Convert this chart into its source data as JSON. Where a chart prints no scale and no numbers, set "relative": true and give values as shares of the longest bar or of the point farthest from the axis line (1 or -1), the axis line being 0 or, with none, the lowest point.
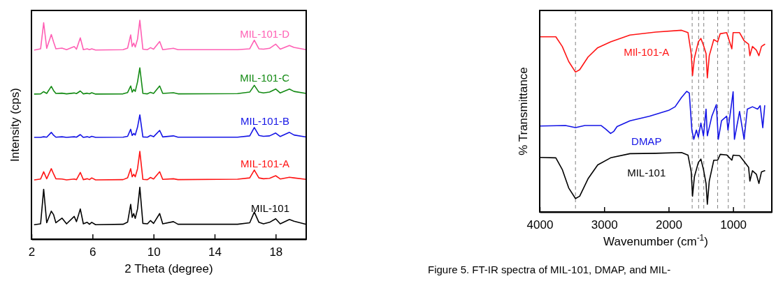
{
  "chart_data": [
    {
      "type": "line",
      "relative": true,
      "xlabel": "2 Theta (degree)",
      "ylabel": "Intensity (cps)",
      "xlim": [
        2,
        20
      ],
      "xticks": [
        2,
        6,
        10,
        14,
        18
      ],
      "x": [
        2.2,
        2.6,
        2.8,
        3.0,
        3.3,
        3.45,
        3.6,
        4.0,
        4.3,
        4.8,
        4.95,
        5.2,
        5.4,
        5.65,
        5.8,
        5.95,
        6.2,
        8.0,
        8.3,
        8.5,
        8.6,
        8.7,
        8.8,
        8.95,
        9.1,
        9.3,
        9.6,
        9.8,
        10.0,
        10.4,
        10.6,
        11.3,
        11.6,
        15.5,
        16.3,
        16.6,
        16.9,
        17.2,
        17.6,
        18.0,
        18.3,
        18.9,
        19.2,
        20.0
      ],
      "series": [
        {
          "name": "MIL-101-D",
          "color": "#ff5fb4",
          "values": [
            0.864,
            0.87,
            0.989,
            0.872,
            0.935,
            0.901,
            0.87,
            0.873,
            0.866,
            0.88,
            0.868,
            0.92,
            0.866,
            0.87,
            0.866,
            0.87,
            0.864,
            0.866,
            0.873,
            0.933,
            0.88,
            0.896,
            0.878,
            0.914,
            1.0,
            0.868,
            0.866,
            0.875,
            0.868,
            0.903,
            0.866,
            0.872,
            0.866,
            0.866,
            0.87,
            0.909,
            0.87,
            0.868,
            0.872,
            0.891,
            0.868,
            0.885,
            0.876,
            0.866
          ]
        },
        {
          "name": "MIL-101-C",
          "color": "#138a13",
          "values": [
            0.663,
            0.664,
            0.674,
            0.666,
            0.698,
            0.679,
            0.666,
            0.667,
            0.664,
            0.668,
            0.665,
            0.677,
            0.664,
            0.667,
            0.664,
            0.669,
            0.663,
            0.664,
            0.67,
            0.7,
            0.672,
            0.684,
            0.675,
            0.719,
            0.783,
            0.666,
            0.664,
            0.671,
            0.666,
            0.7,
            0.666,
            0.669,
            0.664,
            0.665,
            0.672,
            0.703,
            0.672,
            0.668,
            0.672,
            0.686,
            0.668,
            0.686,
            0.675,
            0.666
          ]
        },
        {
          "name": "MIL-101-B",
          "color": "#1414e6",
          "values": [
            0.465,
            0.465,
            0.468,
            0.466,
            0.488,
            0.475,
            0.466,
            0.468,
            0.465,
            0.468,
            0.466,
            0.478,
            0.465,
            0.468,
            0.465,
            0.47,
            0.465,
            0.466,
            0.47,
            0.502,
            0.474,
            0.483,
            0.476,
            0.512,
            0.568,
            0.467,
            0.466,
            0.474,
            0.468,
            0.497,
            0.467,
            0.472,
            0.466,
            0.466,
            0.472,
            0.51,
            0.474,
            0.47,
            0.472,
            0.485,
            0.469,
            0.488,
            0.476,
            0.467
          ]
        },
        {
          "name": "MIL-101-A",
          "color": "#ff1414",
          "values": [
            0.271,
            0.275,
            0.308,
            0.276,
            0.322,
            0.298,
            0.276,
            0.275,
            0.271,
            0.275,
            0.272,
            0.305,
            0.272,
            0.276,
            0.272,
            0.28,
            0.271,
            0.272,
            0.28,
            0.322,
            0.285,
            0.297,
            0.285,
            0.322,
            0.401,
            0.273,
            0.272,
            0.282,
            0.275,
            0.308,
            0.273,
            0.276,
            0.272,
            0.274,
            0.28,
            0.316,
            0.28,
            0.276,
            0.278,
            0.29,
            0.275,
            0.283,
            0.28,
            0.273
          ]
        },
        {
          "name": "MIL-101",
          "color": "#000000",
          "values": [
            0.066,
            0.07,
            0.228,
            0.075,
            0.128,
            0.112,
            0.075,
            0.096,
            0.07,
            0.104,
            0.08,
            0.138,
            0.07,
            0.077,
            0.068,
            0.077,
            0.066,
            0.068,
            0.078,
            0.159,
            0.1,
            0.117,
            0.095,
            0.138,
            0.237,
            0.072,
            0.07,
            0.085,
            0.072,
            0.117,
            0.07,
            0.08,
            0.068,
            0.068,
            0.075,
            0.124,
            0.077,
            0.07,
            0.077,
            0.093,
            0.07,
            0.09,
            0.082,
            0.068
          ]
        }
      ]
    },
    {
      "type": "line",
      "relative": true,
      "xlabel": "Wavenumber (cm$^{-1}$)",
      "ylabel": "% Transmittance",
      "xlim": [
        4000,
        400
      ],
      "xticks": [
        4000,
        3000,
        2000,
        1000
      ],
      "x": [
        4000,
        3750,
        3650,
        3550,
        3445,
        3380,
        3250,
        3100,
        2900,
        2600,
        2200,
        1800,
        1700,
        1650,
        1630,
        1600,
        1540,
        1500,
        1460,
        1420,
        1400,
        1370,
        1300,
        1240,
        1200,
        1100,
        1020,
        1000,
        900,
        830,
        760,
        740,
        700,
        640,
        600,
        560,
        510
      ],
      "series": [
        {
          "name": "MIl-101-A",
          "color": "#ff1414",
          "values": [
            0.964,
            0.964,
            0.911,
            0.828,
            0.77,
            0.783,
            0.853,
            0.904,
            0.936,
            0.974,
            0.99,
            1.0,
            0.987,
            0.872,
            0.751,
            0.847,
            0.936,
            0.955,
            0.917,
            0.872,
            0.738,
            0.86,
            0.949,
            0.936,
            0.981,
            0.987,
            0.898,
            0.987,
            0.987,
            0.943,
            0.923,
            0.86,
            0.911,
            0.891,
            0.86,
            0.911,
            0.923
          ]
        },
        {
          "name": "DMAP",
          "color": "#1414e6",
          "x": [
            4000,
            3600,
            3445,
            3300,
            3050,
            2980,
            2900,
            2850,
            2800,
            2600,
            2300,
            2000,
            1900,
            1800,
            1720,
            1680,
            1640,
            1610,
            1570,
            1540,
            1500,
            1460,
            1420,
            1400,
            1330,
            1260,
            1230,
            1180,
            1100,
            1080,
            1040,
            1000,
            980,
            900,
            830,
            780,
            700,
            620,
            580,
            540,
            510
          ],
          "values": [
            0.473,
            0.476,
            0.464,
            0.476,
            0.476,
            0.457,
            0.432,
            0.444,
            0.47,
            0.502,
            0.527,
            0.559,
            0.579,
            0.63,
            0.664,
            0.655,
            0.451,
            0.4,
            0.451,
            0.412,
            0.489,
            0.419,
            0.566,
            0.419,
            0.527,
            0.591,
            0.4,
            0.502,
            0.527,
            0.451,
            0.553,
            0.662,
            0.4,
            0.553,
            0.4,
            0.566,
            0.579,
            0.566,
            0.585,
            0.464,
            0.585
          ]
        },
        {
          "name": "MIL-101",
          "color": "#000000",
          "values": [
            0.3,
            0.298,
            0.234,
            0.132,
            0.074,
            0.087,
            0.183,
            0.259,
            0.298,
            0.321,
            0.323,
            0.327,
            0.313,
            0.221,
            0.087,
            0.195,
            0.272,
            0.291,
            0.234,
            0.157,
            0.042,
            0.17,
            0.285,
            0.285,
            0.317,
            0.314,
            0.285,
            0.313,
            0.31,
            0.278,
            0.246,
            0.17,
            0.227,
            0.208,
            0.157,
            0.221,
            0.227
          ]
        }
      ],
      "ref_lines": [
        {
          "axis": "x",
          "value": 3445,
          "color": "#808080",
          "line_style": "dashed"
        },
        {
          "axis": "x",
          "value": 1635,
          "color": "#808080",
          "line_style": "dashed"
        },
        {
          "axis": "x",
          "value": 1535,
          "color": "#808080",
          "line_style": "dashed"
        },
        {
          "axis": "x",
          "value": 1455,
          "color": "#808080",
          "line_style": "dashed"
        },
        {
          "axis": "x",
          "value": 1240,
          "color": "#808080",
          "line_style": "dashed"
        },
        {
          "axis": "x",
          "value": 1075,
          "color": "#808080",
          "line_style": "dashed"
        },
        {
          "axis": "x",
          "value": 825,
          "color": "#808080",
          "line_style": "dashed"
        }
      ],
      "annotations": [
        "Figure 5. FT-IR spectra of MIL-101, DMAP, and MIL-"
      ]
    }
  ]
}
